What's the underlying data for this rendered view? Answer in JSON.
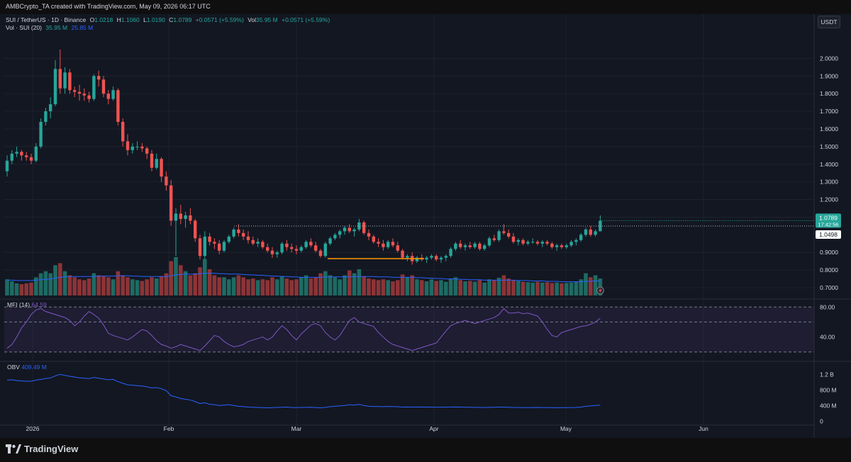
{
  "attribution": "AMBCrypto_TA created with TradingView.com, May 09, 2026 06:17 UTC",
  "legend": {
    "symbol": "SUI / TetherUS · 1D · Binance",
    "open_label": "O",
    "open": "1.0218",
    "high_label": "H",
    "high": "1.1060",
    "low_label": "L",
    "low": "1.0190",
    "close_label": "C",
    "close": "1.0789",
    "change": "+0.0571 (+5.59%)",
    "vol_label": "Vol",
    "vol_value": "35.95 M",
    "vol_change": "+0.0571 (+5.59%)"
  },
  "vol_legend": {
    "label": "Vol · SUI (20)",
    "value": "35.95 M",
    "ma": "25.85 M"
  },
  "currency": "USDT",
  "mfi": {
    "label": "MFI (14)",
    "value": "64.59"
  },
  "obv": {
    "label": "OBV",
    "value": "409.49 M"
  },
  "footer_brand": "TradingView",
  "colors": {
    "up": "#26a69a",
    "down": "#ef5350",
    "up_vol": "#1e6b63",
    "down_vol": "#8c3437",
    "ma": "#2962ff",
    "mfi": "#7e57c2",
    "obv": "#2962ff",
    "resistance": "#b2b5be",
    "support": "#ff9800",
    "price_tag": "#26a69a"
  },
  "chart_data": {
    "type": "candlestick",
    "timeframe": "1D",
    "x_tick_labels": [
      "2026",
      "Feb",
      "Mar",
      "Apr",
      "May",
      "Jun"
    ],
    "price_axis_labels": [
      "2.0000",
      "1.9000",
      "1.8000",
      "1.7000",
      "1.6000",
      "1.5000",
      "1.4000",
      "1.3000",
      "1.2000",
      "1.1000",
      "0.9000",
      "0.8000",
      "0.7000"
    ],
    "price_ylim": [
      0.66,
      2.13
    ],
    "last_price": "1.0789",
    "countdown": "17:42:56",
    "marker_price": "1.0498",
    "resistance_level": 1.0498,
    "support_level": 0.865,
    "candles": [
      [
        1.36,
        1.45,
        1.33,
        1.42
      ],
      [
        1.42,
        1.48,
        1.4,
        1.46
      ],
      [
        1.46,
        1.5,
        1.44,
        1.47
      ],
      [
        1.47,
        1.48,
        1.42,
        1.45
      ],
      [
        1.45,
        1.47,
        1.42,
        1.44
      ],
      [
        1.44,
        1.46,
        1.4,
        1.42
      ],
      [
        1.42,
        1.52,
        1.41,
        1.5
      ],
      [
        1.5,
        1.66,
        1.49,
        1.64
      ],
      [
        1.64,
        1.72,
        1.62,
        1.7
      ],
      [
        1.7,
        1.78,
        1.66,
        1.74
      ],
      [
        1.74,
        1.99,
        1.73,
        1.94
      ],
      [
        1.94,
        2.05,
        1.8,
        1.83
      ],
      [
        1.83,
        1.95,
        1.8,
        1.92
      ],
      [
        1.92,
        1.94,
        1.8,
        1.82
      ],
      [
        1.82,
        1.84,
        1.78,
        1.81
      ],
      [
        1.81,
        1.85,
        1.76,
        1.8
      ],
      [
        1.8,
        1.83,
        1.76,
        1.79
      ],
      [
        1.79,
        1.81,
        1.75,
        1.77
      ],
      [
        1.77,
        1.91,
        1.76,
        1.9
      ],
      [
        1.9,
        1.93,
        1.84,
        1.88
      ],
      [
        1.88,
        1.9,
        1.78,
        1.8
      ],
      [
        1.8,
        1.82,
        1.74,
        1.77
      ],
      [
        1.77,
        1.84,
        1.76,
        1.82
      ],
      [
        1.82,
        1.83,
        1.62,
        1.64
      ],
      [
        1.64,
        1.66,
        1.5,
        1.53
      ],
      [
        1.53,
        1.57,
        1.45,
        1.48
      ],
      [
        1.48,
        1.52,
        1.46,
        1.5
      ],
      [
        1.5,
        1.53,
        1.48,
        1.5
      ],
      [
        1.5,
        1.52,
        1.47,
        1.49
      ],
      [
        1.49,
        1.5,
        1.43,
        1.46
      ],
      [
        1.46,
        1.48,
        1.36,
        1.38
      ],
      [
        1.38,
        1.46,
        1.37,
        1.43
      ],
      [
        1.43,
        1.44,
        1.3,
        1.33
      ],
      [
        1.33,
        1.36,
        1.25,
        1.28
      ],
      [
        1.28,
        1.31,
        1.05,
        1.08
      ],
      [
        1.08,
        1.15,
        0.88,
        1.12
      ],
      [
        1.12,
        1.17,
        1.06,
        1.09
      ],
      [
        1.09,
        1.13,
        1.04,
        1.11
      ],
      [
        1.11,
        1.15,
        1.06,
        1.08
      ],
      [
        1.08,
        1.09,
        0.96,
        0.98
      ],
      [
        0.98,
        1.0,
        0.86,
        0.88
      ],
      [
        0.88,
        1.02,
        0.86,
        0.99
      ],
      [
        0.99,
        1.01,
        0.94,
        0.96
      ],
      [
        0.96,
        0.98,
        0.92,
        0.95
      ],
      [
        0.95,
        0.97,
        0.89,
        0.91
      ],
      [
        0.91,
        0.97,
        0.9,
        0.96
      ],
      [
        0.96,
        1.0,
        0.95,
        0.99
      ],
      [
        0.99,
        1.04,
        0.98,
        1.03
      ],
      [
        1.03,
        1.06,
        0.99,
        1.01
      ],
      [
        1.01,
        1.03,
        0.97,
        0.99
      ],
      [
        0.99,
        1.02,
        0.95,
        0.97
      ],
      [
        0.97,
        0.99,
        0.94,
        0.95
      ],
      [
        0.95,
        0.98,
        0.93,
        0.96
      ],
      [
        0.96,
        0.97,
        0.92,
        0.93
      ],
      [
        0.93,
        0.95,
        0.9,
        0.91
      ],
      [
        0.91,
        0.93,
        0.87,
        0.89
      ],
      [
        0.89,
        0.91,
        0.87,
        0.9
      ],
      [
        0.9,
        0.96,
        0.89,
        0.95
      ],
      [
        0.95,
        0.97,
        0.91,
        0.93
      ],
      [
        0.93,
        0.95,
        0.9,
        0.92
      ],
      [
        0.92,
        0.94,
        0.89,
        0.91
      ],
      [
        0.91,
        0.94,
        0.9,
        0.93
      ],
      [
        0.93,
        0.97,
        0.92,
        0.96
      ],
      [
        0.96,
        0.98,
        0.93,
        0.94
      ],
      [
        0.94,
        0.96,
        0.9,
        0.91
      ],
      [
        0.91,
        0.92,
        0.87,
        0.88
      ],
      [
        0.88,
        0.96,
        0.87,
        0.95
      ],
      [
        0.95,
        0.99,
        0.94,
        0.98
      ],
      [
        0.98,
        1.01,
        0.97,
        1.0
      ],
      [
        1.0,
        1.03,
        0.98,
        1.02
      ],
      [
        1.02,
        1.05,
        1.0,
        1.04
      ],
      [
        1.04,
        1.06,
        1.01,
        1.02
      ],
      [
        1.02,
        1.04,
        0.99,
        1.03
      ],
      [
        1.03,
        1.09,
        1.02,
        1.07
      ],
      [
        1.07,
        1.08,
        1.0,
        1.01
      ],
      [
        1.01,
        1.03,
        0.97,
        0.99
      ],
      [
        0.99,
        1.0,
        0.95,
        0.96
      ],
      [
        0.96,
        0.98,
        0.93,
        0.95
      ],
      [
        0.95,
        0.97,
        0.91,
        0.93
      ],
      [
        0.93,
        0.97,
        0.92,
        0.96
      ],
      [
        0.96,
        0.98,
        0.93,
        0.94
      ],
      [
        0.94,
        0.96,
        0.9,
        0.91
      ],
      [
        0.91,
        0.92,
        0.86,
        0.87
      ],
      [
        0.87,
        0.89,
        0.85,
        0.88
      ],
      [
        0.88,
        0.9,
        0.83,
        0.85
      ],
      [
        0.85,
        0.88,
        0.84,
        0.87
      ],
      [
        0.87,
        0.89,
        0.85,
        0.86
      ],
      [
        0.86,
        0.88,
        0.84,
        0.87
      ],
      [
        0.87,
        0.89,
        0.86,
        0.88
      ],
      [
        0.88,
        0.89,
        0.85,
        0.86
      ],
      [
        0.86,
        0.88,
        0.84,
        0.87
      ],
      [
        0.87,
        0.89,
        0.85,
        0.88
      ],
      [
        0.88,
        0.93,
        0.87,
        0.92
      ],
      [
        0.92,
        0.96,
        0.91,
        0.95
      ],
      [
        0.95,
        0.97,
        0.92,
        0.93
      ],
      [
        0.93,
        0.95,
        0.91,
        0.94
      ],
      [
        0.94,
        0.96,
        0.92,
        0.93
      ],
      [
        0.93,
        0.96,
        0.92,
        0.95
      ],
      [
        0.95,
        0.96,
        0.91,
        0.92
      ],
      [
        0.92,
        0.95,
        0.91,
        0.94
      ],
      [
        0.94,
        0.99,
        0.93,
        0.98
      ],
      [
        0.98,
        1.0,
        0.96,
        0.97
      ],
      [
        0.97,
        1.03,
        0.96,
        1.02
      ],
      [
        1.02,
        1.06,
        1.0,
        1.01
      ],
      [
        1.01,
        1.03,
        0.98,
        0.99
      ],
      [
        0.99,
        1.01,
        0.95,
        0.96
      ],
      [
        0.96,
        0.98,
        0.94,
        0.97
      ],
      [
        0.97,
        0.98,
        0.94,
        0.95
      ],
      [
        0.95,
        0.97,
        0.94,
        0.96
      ],
      [
        0.96,
        0.98,
        0.95,
        0.96
      ],
      [
        0.96,
        0.97,
        0.94,
        0.95
      ],
      [
        0.95,
        0.97,
        0.93,
        0.96
      ],
      [
        0.96,
        0.97,
        0.94,
        0.95
      ],
      [
        0.95,
        0.96,
        0.92,
        0.93
      ],
      [
        0.93,
        0.95,
        0.91,
        0.94
      ],
      [
        0.94,
        0.95,
        0.92,
        0.93
      ],
      [
        0.93,
        0.95,
        0.92,
        0.94
      ],
      [
        0.94,
        0.97,
        0.93,
        0.96
      ],
      [
        0.96,
        0.98,
        0.94,
        0.97
      ],
      [
        0.97,
        1.01,
        0.96,
        1.0
      ],
      [
        1.0,
        1.04,
        0.99,
        1.03
      ],
      [
        1.03,
        1.05,
        0.99,
        1.0
      ],
      [
        1.0,
        1.03,
        0.99,
        1.02
      ],
      [
        1.02,
        1.11,
        1.02,
        1.08
      ]
    ],
    "volume_scale_ylim": [
      0,
      100
    ],
    "volume": [
      40,
      35,
      30,
      28,
      30,
      32,
      45,
      55,
      60,
      55,
      75,
      80,
      60,
      50,
      45,
      40,
      38,
      42,
      55,
      50,
      48,
      45,
      40,
      60,
      50,
      45,
      40,
      38,
      36,
      40,
      45,
      42,
      48,
      55,
      85,
      95,
      75,
      60,
      50,
      55,
      70,
      90,
      65,
      50,
      45,
      45,
      40,
      45,
      50,
      45,
      40,
      42,
      38,
      40,
      38,
      45,
      40,
      48,
      42,
      38,
      40,
      45,
      50,
      42,
      45,
      55,
      60,
      50,
      45,
      40,
      50,
      62,
      55,
      65,
      48,
      42,
      40,
      38,
      40,
      38,
      35,
      38,
      52,
      45,
      50,
      40,
      38,
      35,
      40,
      36,
      38,
      34,
      42,
      45,
      38,
      35,
      36,
      34,
      38,
      32,
      40,
      38,
      44,
      50,
      42,
      38,
      36,
      34,
      33,
      32,
      34,
      32,
      33,
      31,
      32,
      30,
      31,
      32,
      34,
      40,
      55,
      45,
      50,
      42
    ],
    "volume_ma": [
      38,
      38,
      37,
      37,
      37,
      37,
      38,
      39,
      40,
      41,
      43,
      45,
      46,
      47,
      47,
      47,
      47,
      47,
      47,
      48,
      48,
      48,
      48,
      49,
      49,
      49,
      48,
      48,
      47,
      47,
      47,
      47,
      47,
      47,
      49,
      51,
      52,
      53,
      53,
      53,
      54,
      55,
      55,
      55,
      54,
      54,
      53,
      53,
      53,
      52,
      51,
      51,
      50,
      50,
      49,
      48,
      48,
      47,
      47,
      46,
      46,
      45,
      45,
      45,
      45,
      45,
      46,
      46,
      46,
      46,
      46,
      46,
      47,
      47,
      47,
      47,
      47,
      46,
      46,
      46,
      45,
      45,
      45,
      45,
      45,
      44,
      44,
      43,
      43,
      42,
      42,
      41,
      41,
      41,
      40,
      40,
      39,
      39,
      39,
      38,
      38,
      38,
      38,
      38,
      38,
      38,
      37,
      37,
      37,
      36,
      36,
      36,
      35,
      35,
      35,
      34,
      34,
      34,
      34,
      34,
      35,
      35,
      36,
      36
    ],
    "mfi_ylim": [
      15,
      85
    ],
    "mfi_axis_labels": [
      "80.00",
      "40.00"
    ],
    "mfi_bands": [
      80,
      60,
      20
    ],
    "mfi": [
      25,
      30,
      40,
      52,
      60,
      70,
      76,
      78,
      74,
      72,
      70,
      68,
      66,
      62,
      55,
      60,
      68,
      74,
      70,
      65,
      56,
      45,
      42,
      40,
      38,
      36,
      40,
      45,
      50,
      48,
      42,
      35,
      30,
      28,
      25,
      27,
      30,
      28,
      26,
      24,
      22,
      28,
      35,
      42,
      40,
      34,
      30,
      27,
      28,
      30,
      34,
      36,
      38,
      40,
      36,
      40,
      48,
      55,
      50,
      42,
      36,
      44,
      50,
      56,
      58,
      55,
      46,
      40,
      36,
      42,
      52,
      62,
      66,
      60,
      58,
      56,
      54,
      46,
      40,
      34,
      30,
      28,
      26,
      24,
      22,
      24,
      26,
      28,
      30,
      32,
      40,
      48,
      55,
      58,
      60,
      62,
      60,
      58,
      60,
      62,
      64,
      66,
      70,
      78,
      72,
      72,
      73,
      71,
      72,
      70,
      68,
      60,
      50,
      42,
      40,
      46,
      48,
      50,
      52,
      54,
      55,
      57,
      60,
      65
    ],
    "obv_ylim": [
      -50,
      1350
    ],
    "obv_axis_labels": [
      "1.2 B",
      "800 M",
      "400 M",
      "0"
    ],
    "obv": [
      1050,
      1060,
      1040,
      1030,
      1020,
      1025,
      1050,
      1070,
      1090,
      1110,
      1160,
      1200,
      1170,
      1150,
      1130,
      1110,
      1100,
      1090,
      1120,
      1100,
      1080,
      1060,
      1070,
      1010,
      970,
      930,
      920,
      910,
      900,
      880,
      850,
      860,
      830,
      780,
      650,
      620,
      580,
      560,
      540,
      500,
      450,
      470,
      430,
      420,
      400,
      410,
      420,
      400,
      380,
      370,
      360,
      355,
      350,
      345,
      340,
      345,
      350,
      355,
      360,
      350,
      345,
      350,
      352,
      355,
      348,
      340,
      350,
      370,
      380,
      390,
      400,
      420,
      410,
      430,
      400,
      380,
      375,
      372,
      370,
      375,
      372,
      368,
      360,
      362,
      358,
      360,
      362,
      358,
      356,
      357,
      356,
      358,
      360,
      362,
      358,
      356,
      355,
      352,
      350,
      348,
      352,
      356,
      360,
      358,
      355,
      350,
      348,
      345,
      346,
      348,
      350,
      348,
      346,
      345,
      344,
      343,
      345,
      347,
      350,
      360,
      380,
      390,
      400,
      409
    ]
  }
}
